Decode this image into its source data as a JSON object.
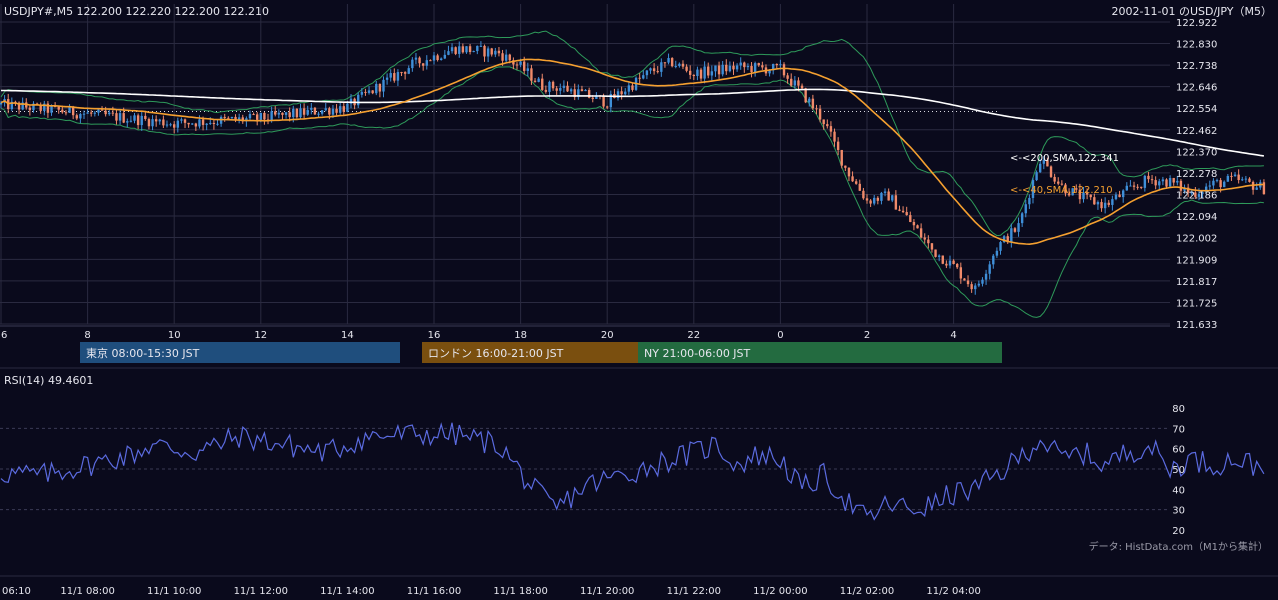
{
  "header": {
    "symbol_info": "USDJPY#,M5 122.200 122.220 122.200 122.210",
    "chart_title": "2002-11-01 のUSD/JPY（M5）"
  },
  "overlays": {
    "sma200_label": "<-<200,SMA,122.341",
    "sma40_label": "<-<40,SMA,122.210"
  },
  "sessions": [
    {
      "label": "東京 08:00-15:30 JST",
      "color": "#1f4e7d"
    },
    {
      "label": "ロンドン 16:00-21:00 JST",
      "color": "#7a4f0f"
    },
    {
      "label": "NY 21:00-06:00 JST",
      "color": "#236b40"
    }
  ],
  "rsi": {
    "title": "RSI(14) 49.4601"
  },
  "source_note": "データ: HistData.com（M1から集計）",
  "colors": {
    "background": "#0a0a1c",
    "grid": "#2a2a40",
    "bull": "#3f8fd8",
    "bear": "#f08a6a",
    "sma40": "#f5a030",
    "sma200": "#ffffff",
    "bollinger": "#2e9a5a",
    "rsi_line": "#5b6be0"
  },
  "chart_data": [
    {
      "type": "candlestick",
      "y_ticks": [
        "122.922",
        "122.830",
        "122.738",
        "122.646",
        "122.554",
        "122.462",
        "122.370",
        "122.278",
        "122.186",
        "122.094",
        "122.002",
        "121.909",
        "121.817",
        "121.725",
        "121.633"
      ],
      "ylim": [
        121.633,
        122.922
      ],
      "x_ticks": [
        "6",
        "8",
        "10",
        "12",
        "14",
        "16",
        "18",
        "20",
        "22",
        "0",
        "2",
        "4"
      ],
      "reference_level": 122.54,
      "price_path": [
        [
          0,
          122.57
        ],
        [
          2,
          122.53
        ],
        [
          4,
          122.49
        ],
        [
          6,
          122.51
        ],
        [
          8,
          122.56
        ],
        [
          9.5,
          122.74
        ],
        [
          10.5,
          122.81
        ],
        [
          11.5,
          122.79
        ],
        [
          12,
          122.73
        ],
        [
          12.5,
          122.65
        ],
        [
          13,
          122.64
        ],
        [
          14,
          122.58
        ],
        [
          15,
          122.71
        ],
        [
          15.5,
          122.75
        ],
        [
          16,
          122.7
        ],
        [
          17,
          122.73
        ],
        [
          18,
          122.72
        ],
        [
          18.5,
          122.62
        ],
        [
          19,
          122.5
        ],
        [
          19.5,
          122.3
        ],
        [
          20,
          122.16
        ],
        [
          20.5,
          122.18
        ],
        [
          21,
          122.07
        ],
        [
          21.5,
          121.95
        ],
        [
          22,
          121.88
        ],
        [
          22.5,
          121.78
        ],
        [
          23,
          121.96
        ],
        [
          23.5,
          122.05
        ],
        [
          24,
          122.34
        ],
        [
          24.5,
          122.22
        ],
        [
          25,
          122.17
        ],
        [
          25.5,
          122.14
        ],
        [
          26,
          122.2
        ],
        [
          26.5,
          122.25
        ],
        [
          27,
          122.24
        ],
        [
          27.5,
          122.19
        ],
        [
          28,
          122.23
        ],
        [
          28.5,
          122.25
        ],
        [
          29.2,
          122.21
        ]
      ],
      "series": [
        {
          "name": "200,SMA",
          "last": 122.341
        },
        {
          "name": "40,SMA",
          "last": 122.21
        }
      ]
    },
    {
      "type": "line",
      "title": "RSI(14) 49.4601",
      "y_ticks": [
        "80",
        "70",
        "60",
        "50",
        "40",
        "30",
        "20"
      ],
      "ylim": [
        20,
        80
      ],
      "x_ticks": [
        "06:10",
        "11/1 08:00",
        "11/1 10:00",
        "11/1 12:00",
        "11/1 14:00",
        "11/1 16:00",
        "11/1 18:00",
        "11/1 20:00",
        "11/1 22:00",
        "11/2 00:00",
        "11/2 02:00",
        "11/2 04:00"
      ],
      "path": [
        [
          0,
          48
        ],
        [
          1,
          47
        ],
        [
          2,
          52
        ],
        [
          3,
          57
        ],
        [
          3.5,
          62
        ],
        [
          4.5,
          58
        ],
        [
          5.5,
          66
        ],
        [
          6.5,
          62
        ],
        [
          7.5,
          58
        ],
        [
          8.5,
          66
        ],
        [
          9.5,
          67
        ],
        [
          10.5,
          67
        ],
        [
          11.5,
          62
        ],
        [
          12.3,
          40
        ],
        [
          12.8,
          30
        ],
        [
          13.5,
          42
        ],
        [
          14.5,
          48
        ],
        [
          15.5,
          55
        ],
        [
          16,
          58
        ],
        [
          16.5,
          62
        ],
        [
          17,
          52
        ],
        [
          17.5,
          57
        ],
        [
          18,
          55
        ],
        [
          18.5,
          40
        ],
        [
          19,
          47
        ],
        [
          19.5,
          35
        ],
        [
          20,
          25
        ],
        [
          20.5,
          33
        ],
        [
          21,
          30
        ],
        [
          21.5,
          32
        ],
        [
          22,
          38
        ],
        [
          22.5,
          40
        ],
        [
          23,
          47
        ],
        [
          23.5,
          55
        ],
        [
          24,
          65
        ],
        [
          24.5,
          55
        ],
        [
          25,
          58
        ],
        [
          25.5,
          52
        ],
        [
          26,
          58
        ],
        [
          26.5,
          62
        ],
        [
          27,
          50
        ],
        [
          27.5,
          55
        ],
        [
          28,
          52
        ],
        [
          28.5,
          55
        ],
        [
          29.2,
          50
        ]
      ]
    }
  ]
}
